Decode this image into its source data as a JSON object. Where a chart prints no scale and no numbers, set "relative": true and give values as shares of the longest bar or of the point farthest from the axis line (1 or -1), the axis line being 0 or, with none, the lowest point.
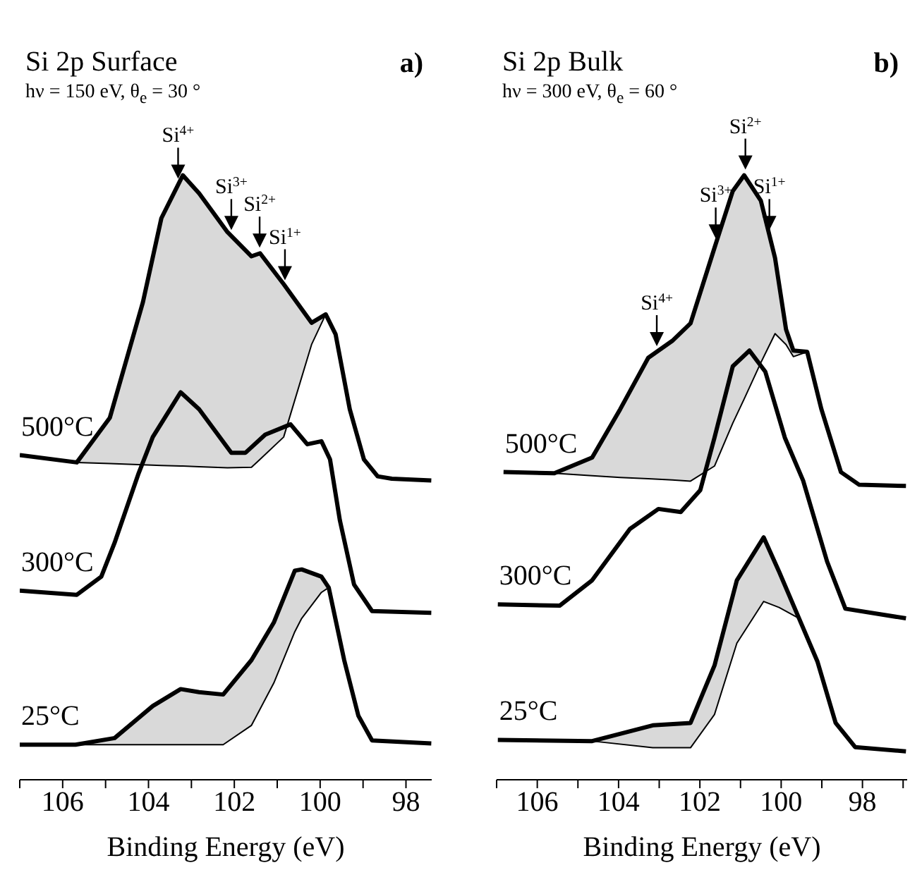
{
  "chart_data": [
    {
      "type": "line",
      "title": "Si 2p Surface",
      "subtitle": "hν = 150 eV, θ$_{e}$ = 30 °",
      "xlabel": "Binding Energy  (eV)",
      "relative": true,
      "line_style": "solid",
      "xlim": [
        107,
        97.4
      ],
      "xticks": [
        {
          "value": 107,
          "label": null
        },
        106,
        {
          "value": 105,
          "label": null
        },
        104,
        {
          "value": 103,
          "label": null
        },
        102,
        {
          "value": 101,
          "label": null
        },
        100,
        {
          "value": 99,
          "label": null
        },
        98
      ],
      "annotations": [
        "a)",
        {
          "text": "Si$^{4+}$",
          "x": 103.31,
          "y": 0.985
        },
        {
          "text": "Si$^{3+}$",
          "x": 102.07,
          "y": 0.9
        },
        {
          "text": "Si$^{2+}$",
          "x": 101.41,
          "y": 0.871
        },
        {
          "text": "Si$^{1+}$",
          "x": 100.82,
          "y": 0.817
        }
      ],
      "series": [
        {
          "name": "500°C",
          "color": "#000000",
          "x": [
            107.0,
            105.67,
            104.9,
            104.13,
            103.7,
            103.2,
            102.82,
            102.16,
            101.6,
            101.4,
            100.85,
            100.2,
            99.87,
            99.64,
            99.31,
            98.98,
            98.66,
            98.33,
            97.41
          ],
          "values": [
            0.537,
            0.525,
            0.599,
            0.79,
            0.929,
            1.0,
            0.97,
            0.906,
            0.866,
            0.871,
            0.82,
            0.756,
            0.77,
            0.737,
            0.613,
            0.53,
            0.502,
            0.498,
            0.495
          ],
          "lower": [
            null,
            0.525,
            0.523,
            0.521,
            0.52,
            0.519,
            0.518,
            0.516,
            0.517,
            0.53,
            0.567,
            0.72,
            0.77,
            null,
            null,
            null,
            null,
            null,
            null
          ],
          "upper": [
            null,
            0.525,
            0.599,
            0.79,
            0.929,
            1.0,
            0.97,
            0.906,
            0.866,
            0.871,
            0.82,
            0.756,
            0.77,
            null,
            null,
            null,
            null,
            null,
            null
          ]
        },
        {
          "color": "#000000",
          "x": [
            105.67,
            104.9,
            104.13,
            103.7,
            103.2,
            102.82,
            102.16,
            101.6,
            101.4,
            100.85,
            100.2,
            99.87
          ],
          "values": [
            0.525,
            0.523,
            0.521,
            0.52,
            0.519,
            0.518,
            0.516,
            0.517,
            0.53,
            0.567,
            0.72,
            0.77
          ]
        },
        {
          "name": "300°C",
          "color": "#000000",
          "x": [
            107.0,
            105.67,
            105.1,
            104.79,
            104.23,
            103.9,
            103.25,
            102.82,
            102.07,
            101.74,
            101.28,
            100.69,
            100.3,
            99.97,
            99.77,
            99.54,
            99.21,
            98.79,
            97.41
          ],
          "values": [
            0.313,
            0.306,
            0.336,
            0.392,
            0.507,
            0.567,
            0.641,
            0.613,
            0.541,
            0.541,
            0.571,
            0.588,
            0.555,
            0.56,
            0.53,
            0.429,
            0.323,
            0.279,
            0.276
          ]
        },
        {
          "name": "25°C",
          "color": "#000000",
          "x": [
            107.0,
            105.7,
            104.79,
            103.9,
            103.25,
            102.82,
            102.26,
            101.6,
            101.08,
            100.59,
            100.43,
            99.97,
            99.8,
            99.44,
            99.11,
            98.79,
            97.41
          ],
          "values": [
            0.058,
            0.058,
            0.069,
            0.122,
            0.15,
            0.145,
            0.141,
            0.198,
            0.26,
            0.346,
            0.348,
            0.336,
            0.318,
            0.198,
            0.106,
            0.065,
            0.06
          ],
          "lower": [
            null,
            0.058,
            0.058,
            0.058,
            0.058,
            0.058,
            0.058,
            0.09,
            0.16,
            0.245,
            0.267,
            0.31,
            0.318,
            null,
            null,
            null,
            null
          ],
          "upper": [
            null,
            0.058,
            0.069,
            0.122,
            0.15,
            0.145,
            0.141,
            0.198,
            0.26,
            0.346,
            0.348,
            0.336,
            0.318,
            null,
            null,
            null,
            null
          ]
        },
        {
          "color": "#000000",
          "x": [
            105.7,
            104.79,
            103.9,
            103.25,
            102.82,
            102.26,
            101.6,
            101.08,
            100.59,
            100.43,
            99.97,
            99.8
          ],
          "values": [
            0.058,
            0.058,
            0.058,
            0.058,
            0.058,
            0.058,
            0.09,
            0.16,
            0.245,
            0.267,
            0.31,
            0.318
          ]
        }
      ]
    },
    {
      "type": "line",
      "title": "Si 2p Bulk",
      "subtitle": "hν = 300 eV, θ$_{e}$ = 60 °",
      "xlabel": "Binding Energy (eV)",
      "relative": true,
      "line_style": "solid",
      "xlim": [
        107,
        96.9
      ],
      "xticks": [
        {
          "value": 107,
          "label": null
        },
        106,
        {
          "value": 105,
          "label": null
        },
        104,
        {
          "value": 103,
          "label": null
        },
        102,
        {
          "value": 101,
          "label": null
        },
        100,
        {
          "value": 99,
          "label": null
        },
        98,
        {
          "value": 97,
          "label": null
        }
      ],
      "annotations": [
        "b)",
        {
          "text": "Si$^{2+}$",
          "x": 100.88,
          "y": 1.0
        },
        {
          "text": "Si$^{1+}$",
          "x": 100.29,
          "y": 0.9
        },
        {
          "text": "Si$^{3+}$",
          "x": 101.61,
          "y": 0.886
        },
        {
          "text": "Si$^{4+}$",
          "x": 103.06,
          "y": 0.708
        }
      ],
      "series": [
        {
          "name": "500°C",
          "color": "#000000",
          "x": [
            106.83,
            105.58,
            104.65,
            103.96,
            103.27,
            102.68,
            102.23,
            101.64,
            101.19,
            100.91,
            100.5,
            100.15,
            99.88,
            99.7,
            99.36,
            99.01,
            98.53,
            98.08,
            96.93
          ],
          "values": [
            0.509,
            0.507,
            0.533,
            0.613,
            0.698,
            0.726,
            0.755,
            0.88,
            0.974,
            1.0,
            0.958,
            0.863,
            0.745,
            0.71,
            0.708,
            0.613,
            0.509,
            0.488,
            0.486
          ],
          "lower": [
            null,
            0.507,
            0.503,
            0.5,
            0.498,
            0.496,
            0.494,
            0.519,
            0.59,
            0.63,
            0.69,
            0.738,
            0.72,
            0.7,
            0.708,
            null,
            null,
            null,
            null
          ],
          "upper": [
            null,
            0.507,
            0.533,
            0.613,
            0.698,
            0.726,
            0.755,
            0.88,
            0.974,
            1.0,
            0.958,
            0.863,
            0.745,
            0.71,
            0.708,
            null,
            null,
            null,
            null
          ]
        },
        {
          "color": "#000000",
          "x": [
            105.58,
            104.65,
            103.96,
            103.27,
            102.68,
            102.23,
            101.64,
            101.19,
            100.91,
            100.5,
            100.15,
            99.88,
            99.7,
            99.36
          ],
          "values": [
            0.507,
            0.503,
            0.5,
            0.498,
            0.496,
            0.494,
            0.519,
            0.59,
            0.63,
            0.69,
            0.738,
            0.72,
            0.7,
            0.708
          ]
        },
        {
          "name": "300°C",
          "color": "#000000",
          "x": [
            106.97,
            105.45,
            104.65,
            103.72,
            103.02,
            102.47,
            101.99,
            101.64,
            101.19,
            100.78,
            100.39,
            99.91,
            99.46,
            98.87,
            98.42,
            96.93
          ],
          "values": [
            0.29,
            0.288,
            0.33,
            0.415,
            0.448,
            0.443,
            0.479,
            0.566,
            0.684,
            0.71,
            0.675,
            0.566,
            0.495,
            0.361,
            0.283,
            0.267
          ]
        },
        {
          "name": "25°C",
          "color": "#000000",
          "x": [
            106.97,
            104.65,
            103.16,
            102.23,
            101.64,
            101.09,
            100.43,
            100.05,
            99.56,
            99.11,
            98.66,
            98.18,
            96.93
          ],
          "values": [
            0.066,
            0.064,
            0.09,
            0.094,
            0.189,
            0.33,
            0.401,
            0.344,
            0.267,
            0.196,
            0.094,
            0.054,
            0.047
          ],
          "lower": [
            null,
            0.064,
            0.053,
            0.053,
            0.108,
            0.226,
            0.295,
            0.285,
            0.267,
            null,
            null,
            null,
            null
          ],
          "upper": [
            null,
            0.064,
            0.09,
            0.094,
            0.189,
            0.33,
            0.401,
            0.344,
            0.267,
            null,
            null,
            null,
            null
          ]
        },
        {
          "color": "#000000",
          "x": [
            104.65,
            103.16,
            102.23,
            101.64,
            101.09,
            100.43,
            100.05,
            99.56
          ],
          "values": [
            0.064,
            0.053,
            0.053,
            0.108,
            0.226,
            0.295,
            0.285,
            0.267
          ]
        }
      ]
    }
  ]
}
